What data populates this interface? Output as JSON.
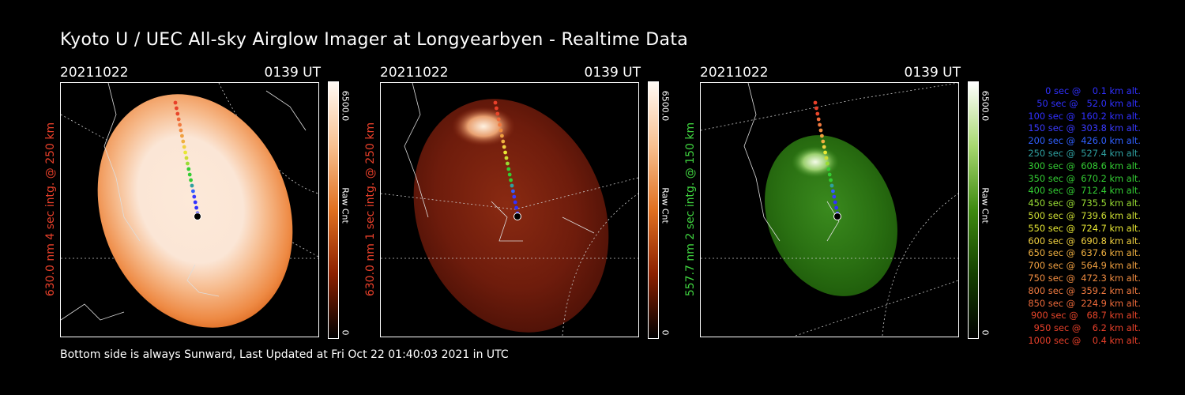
{
  "title": "Kyoto U / UEC All-sky Airglow Imager at Longyearbyen - Realtime Data",
  "footer": "Bottom side is always Sunward, Last Updated at Fri Oct 22 01:40:03 2021 in UTC",
  "panels": [
    {
      "date": "20211022",
      "time": "0139 UT",
      "ylabel": "630.0 nm 4 sec intg. @ 250 km",
      "ylabel_color": "#e8402a",
      "cbar_max": "6500.0",
      "cbar_min": "0",
      "cbar_unit": "Raw Cnt",
      "colormap": "red-saturated"
    },
    {
      "date": "20211022",
      "time": "0139 UT",
      "ylabel": "630.0 nm 1 sec intg. @ 250 km",
      "ylabel_color": "#e8402a",
      "cbar_max": "6500.0",
      "cbar_min": "0",
      "cbar_unit": "Raw Cnt",
      "colormap": "red"
    },
    {
      "date": "20211022",
      "time": "0139 UT",
      "ylabel": "557.7 nm 2 sec intg. @ 150 km",
      "ylabel_color": "#3fd23f",
      "cbar_max": "6500.0",
      "cbar_min": "0",
      "cbar_unit": "Raw Cnt",
      "colormap": "green"
    }
  ],
  "legend": [
    {
      "text": "   0 sec @    0.1 km alt.",
      "color": "#3030ff"
    },
    {
      "text": "  50 sec @   52.0 km alt.",
      "color": "#3030ff"
    },
    {
      "text": " 100 sec @  160.2 km alt.",
      "color": "#3030ff"
    },
    {
      "text": " 150 sec @  303.8 km alt.",
      "color": "#3a3aff"
    },
    {
      "text": " 200 sec @  426.0 km alt.",
      "color": "#3060ff"
    },
    {
      "text": " 250 sec @  527.4 km alt.",
      "color": "#2fa0a0"
    },
    {
      "text": " 300 sec @  608.6 km alt.",
      "color": "#33cc33"
    },
    {
      "text": " 350 sec @  670.2 km alt.",
      "color": "#33cc33"
    },
    {
      "text": " 400 sec @  712.4 km alt.",
      "color": "#33cc33"
    },
    {
      "text": " 450 sec @  735.5 km alt.",
      "color": "#99dd33"
    },
    {
      "text": " 500 sec @  739.6 km alt.",
      "color": "#ccdd33"
    },
    {
      "text": " 550 sec @  724.7 km alt.",
      "color": "#e8e833"
    },
    {
      "text": " 600 sec @  690.8 km alt.",
      "color": "#f0d040"
    },
    {
      "text": " 650 sec @  637.6 km alt.",
      "color": "#f0b040"
    },
    {
      "text": " 700 sec @  564.9 km alt.",
      "color": "#f0a040"
    },
    {
      "text": " 750 sec @  472.3 km alt.",
      "color": "#f08c40"
    },
    {
      "text": " 800 sec @  359.2 km alt.",
      "color": "#f07a40"
    },
    {
      "text": " 850 sec @  224.9 km alt.",
      "color": "#ee6a3a"
    },
    {
      "text": " 900 sec @   68.7 km alt.",
      "color": "#e8452a"
    },
    {
      "text": " 950 sec @    6.2 km alt.",
      "color": "#e8402a"
    },
    {
      "text": "1000 sec @    0.4 km alt.",
      "color": "#e8402a"
    }
  ]
}
